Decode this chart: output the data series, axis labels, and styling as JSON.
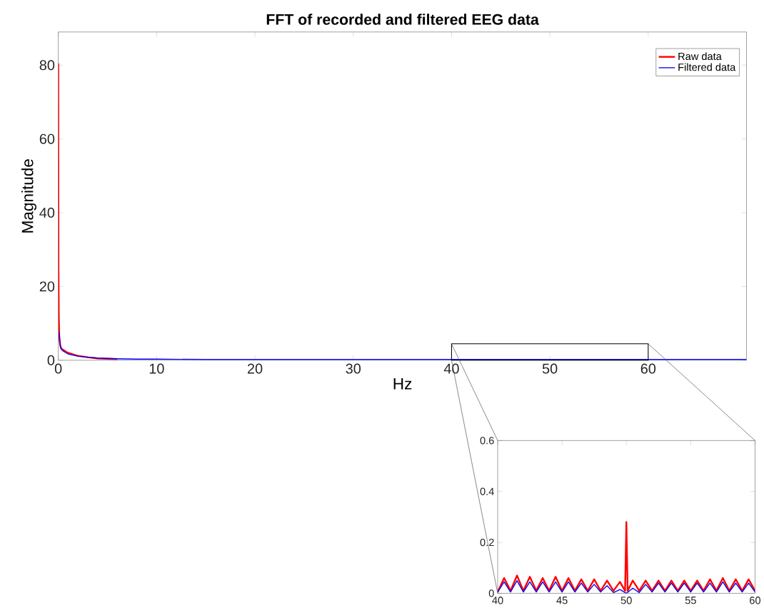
{
  "chart_data": [
    {
      "type": "line",
      "title": "FFT of recorded and filtered EEG data",
      "xlabel": "Hz",
      "ylabel": "Magnitude",
      "xlim": [
        0,
        70
      ],
      "ylim": [
        0,
        89
      ],
      "xticks": [
        0,
        10,
        20,
        30,
        40,
        50,
        60
      ],
      "yticks": [
        0,
        20,
        40,
        60,
        80
      ],
      "legend": "top right",
      "series": [
        {
          "name": "Raw data",
          "color": "#ff0000",
          "x": [
            0,
            0.02,
            0.05,
            0.1,
            0.2,
            0.3,
            0.5,
            0.8,
            1,
            1.5,
            2,
            3,
            4,
            5,
            6
          ],
          "values": [
            80.5,
            25,
            12,
            6,
            4,
            3.2,
            2.8,
            2.3,
            2.0,
            1.6,
            1.2,
            0.8,
            0.5,
            0.4,
            0.3
          ]
        },
        {
          "name": "Filtered data",
          "color": "#0000ff",
          "x": [
            0.1,
            0.2,
            0.3,
            0.5,
            0.8,
            1,
            1.5,
            2,
            3,
            4,
            5,
            6,
            8,
            10,
            15,
            20,
            30,
            40,
            50,
            60,
            70
          ],
          "values": [
            7.5,
            4,
            3,
            2.5,
            2,
            1.7,
            1.4,
            1.1,
            0.8,
            0.6,
            0.5,
            0.4,
            0.3,
            0.3,
            0.2,
            0.2,
            0.2,
            0.2,
            0.2,
            0.2,
            0.2
          ]
        }
      ]
    },
    {
      "type": "line",
      "xlim": [
        40,
        60
      ],
      "ylim": [
        0,
        0.6
      ],
      "xticks": [
        40,
        45,
        50,
        55,
        60
      ],
      "yticks": [
        0,
        0.2,
        0.4,
        0.6
      ],
      "series": [
        {
          "color": "#ff0000",
          "x": [
            40,
            40.5,
            41,
            41.5,
            42,
            42.5,
            43,
            43.5,
            44,
            44.5,
            45,
            45.5,
            46,
            46.5,
            47,
            47.5,
            48,
            48.5,
            49,
            49.5,
            49.9,
            50,
            50.1,
            50.5,
            51,
            51.5,
            52,
            52.5,
            53,
            53.5,
            54,
            54.5,
            55,
            55.5,
            56,
            56.5,
            57,
            57.5,
            58,
            58.5,
            59,
            59.5,
            60
          ],
          "values": [
            0.005,
            0.06,
            0.01,
            0.07,
            0.01,
            0.065,
            0.01,
            0.06,
            0.01,
            0.065,
            0.01,
            0.06,
            0.01,
            0.055,
            0.01,
            0.055,
            0.01,
            0.05,
            0.01,
            0.045,
            0.01,
            0.28,
            0.01,
            0.05,
            0.01,
            0.05,
            0.01,
            0.05,
            0.01,
            0.05,
            0.01,
            0.05,
            0.01,
            0.05,
            0.01,
            0.055,
            0.01,
            0.06,
            0.01,
            0.055,
            0.01,
            0.055,
            0.01
          ]
        },
        {
          "color": "#0000ff",
          "x": [
            40,
            40.5,
            41,
            41.5,
            42,
            42.5,
            43,
            43.5,
            44,
            44.5,
            45,
            45.5,
            46,
            46.5,
            47,
            47.5,
            48,
            48.5,
            49,
            49.5,
            50,
            50.5,
            51,
            51.5,
            52,
            52.5,
            53,
            53.5,
            54,
            54.5,
            55,
            55.5,
            56,
            56.5,
            57,
            57.5,
            58,
            58.5,
            59,
            59.5,
            60
          ],
          "values": [
            0.005,
            0.045,
            0.005,
            0.05,
            0.005,
            0.045,
            0.005,
            0.045,
            0.005,
            0.045,
            0.005,
            0.045,
            0.005,
            0.04,
            0.005,
            0.035,
            0.005,
            0.03,
            0.003,
            0.015,
            0,
            0.02,
            0.003,
            0.035,
            0.005,
            0.04,
            0.005,
            0.04,
            0.005,
            0.04,
            0.005,
            0.04,
            0.005,
            0.04,
            0.005,
            0.045,
            0.005,
            0.04,
            0.005,
            0.04,
            0.005
          ]
        }
      ]
    }
  ]
}
